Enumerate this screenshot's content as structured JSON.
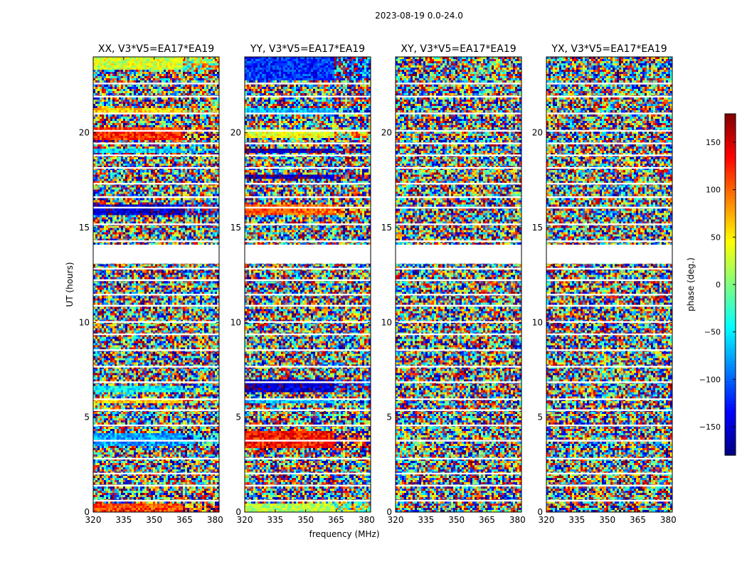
{
  "figure": {
    "suptitle": "2023-08-19 0.0-24.0",
    "colorbar": {
      "label": "phase (deg.)",
      "range": [
        -180,
        180
      ],
      "ticks": [
        -150,
        -100,
        -50,
        0,
        50,
        100,
        150
      ],
      "colors": [
        "#00007f",
        "#0000ff",
        "#007fff",
        "#00ffff",
        "#7fff7f",
        "#ffff00",
        "#ff7f00",
        "#ff0000",
        "#7f0000"
      ]
    }
  },
  "chart_data": [
    {
      "type": "heatmap",
      "title": "XX, V3*V5=EA17*EA19",
      "xlabel": "frequency (MHz)",
      "ylabel": "UT (hours)",
      "xlim": [
        320,
        382
      ],
      "ylim": [
        0,
        24
      ],
      "xticks": [
        320,
        335,
        350,
        365,
        380
      ],
      "yticks": [
        0,
        5,
        10,
        15,
        20
      ],
      "colormap": "jet",
      "value_range": [
        -180,
        180
      ],
      "flagged_hours": [
        [
          13.1,
          14.1
        ]
      ],
      "coherent_bands": [
        {
          "from": 23.3,
          "to": 24.0,
          "phase": 30
        },
        {
          "from": 21.0,
          "to": 21.3,
          "phase": 60
        },
        {
          "from": 19.6,
          "to": 20.3,
          "phase": 120
        },
        {
          "from": 18.9,
          "to": 19.1,
          "phase": -60
        },
        {
          "from": 15.7,
          "to": 16.2,
          "phase": -150
        },
        {
          "from": 6.3,
          "to": 6.7,
          "phase": -45
        },
        {
          "from": 5.7,
          "to": 6.0,
          "phase": 60
        },
        {
          "from": 3.5,
          "to": 4.2,
          "phase": -80
        },
        {
          "from": 0.0,
          "to": 0.4,
          "phase": 110
        }
      ]
    },
    {
      "type": "heatmap",
      "title": "YY, V3*V5=EA17*EA19",
      "xlabel": "frequency (MHz)",
      "ylabel": "UT (hours)",
      "xlim": [
        320,
        382
      ],
      "ylim": [
        0,
        24
      ],
      "xticks": [
        320,
        335,
        350,
        365,
        380
      ],
      "yticks": [
        0,
        5,
        10,
        15,
        20
      ],
      "colormap": "jet",
      "value_range": [
        -180,
        180
      ],
      "flagged_hours": [
        [
          13.1,
          14.1
        ]
      ],
      "coherent_bands": [
        {
          "from": 22.8,
          "to": 24.0,
          "phase": -120
        },
        {
          "from": 21.0,
          "to": 21.3,
          "phase": -70
        },
        {
          "from": 19.7,
          "to": 20.2,
          "phase": 40
        },
        {
          "from": 18.9,
          "to": 19.1,
          "phase": -160
        },
        {
          "from": 17.6,
          "to": 17.8,
          "phase": -160
        },
        {
          "from": 15.7,
          "to": 16.2,
          "phase": 100
        },
        {
          "from": 6.3,
          "to": 7.0,
          "phase": -150
        },
        {
          "from": 5.7,
          "to": 6.0,
          "phase": -70
        },
        {
          "from": 3.4,
          "to": 4.3,
          "phase": 130
        },
        {
          "from": 0.0,
          "to": 0.5,
          "phase": 20
        }
      ]
    },
    {
      "type": "heatmap",
      "title": "XY, V3*V5=EA17*EA19",
      "xlabel": "frequency (MHz)",
      "ylabel": "UT (hours)",
      "xlim": [
        320,
        382
      ],
      "ylim": [
        0,
        24
      ],
      "xticks": [
        320,
        335,
        350,
        365,
        380
      ],
      "yticks": [
        0,
        5,
        10,
        15,
        20
      ],
      "colormap": "jet",
      "value_range": [
        -180,
        180
      ],
      "flagged_hours": [
        [
          13.1,
          14.1
        ]
      ],
      "coherent_bands": []
    },
    {
      "type": "heatmap",
      "title": "YX, V3*V5=EA17*EA19",
      "xlabel": "frequency (MHz)",
      "ylabel": "UT (hours)",
      "xlim": [
        320,
        382
      ],
      "ylim": [
        0,
        24
      ],
      "xticks": [
        320,
        335,
        350,
        365,
        380
      ],
      "yticks": [
        0,
        5,
        10,
        15,
        20
      ],
      "colormap": "jet",
      "value_range": [
        -180,
        180
      ],
      "flagged_hours": [
        [
          13.1,
          14.1
        ]
      ],
      "coherent_bands": []
    }
  ]
}
